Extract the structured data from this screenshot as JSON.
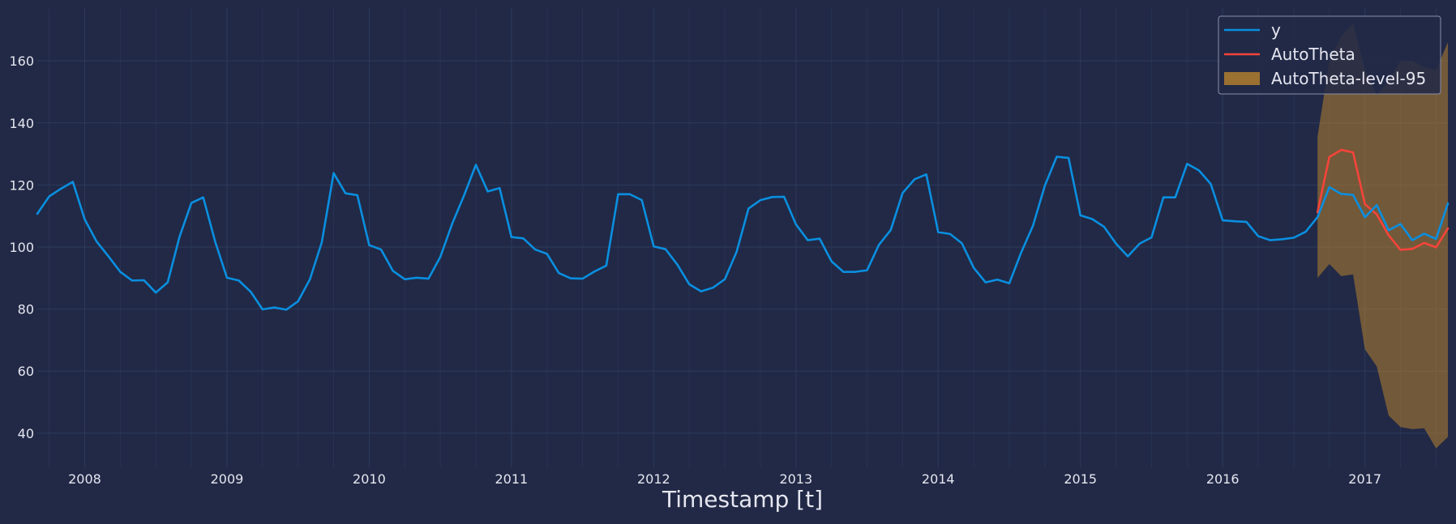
{
  "chart_data": {
    "type": "line",
    "title": "",
    "xlabel": "Timestamp [t]",
    "ylabel": "",
    "x_start": "2007-09",
    "x_step": "month",
    "x_ticks": [
      "2008",
      "2009",
      "2010",
      "2011",
      "2012",
      "2013",
      "2014",
      "2015",
      "2016",
      "2017"
    ],
    "y_ticks": [
      40,
      60,
      80,
      100,
      120,
      140,
      160
    ],
    "ylim": [
      29,
      177
    ],
    "grid": true,
    "legend_position": "top-right",
    "series": [
      {
        "name": "y",
        "kind": "line",
        "color": "#0A8FE0",
        "values": [
          110.7,
          116.3,
          118.8,
          121.0,
          108.9,
          101.8,
          97.0,
          92.0,
          89.2,
          89.3,
          85.3,
          88.6,
          103.3,
          114.2,
          116.0,
          101.8,
          90.1,
          89.2,
          85.6,
          79.9,
          80.5,
          79.8,
          82.5,
          89.6,
          101.5,
          123.8,
          117.3,
          116.7,
          100.6,
          99.2,
          92.3,
          89.6,
          90.1,
          89.8,
          96.8,
          107.5,
          116.6,
          126.5,
          117.9,
          119.0,
          103.2,
          102.8,
          99.2,
          97.8,
          91.6,
          89.9,
          89.8,
          92.1,
          94.0,
          117.0,
          117.0,
          115.1,
          100.2,
          99.3,
          94.3,
          88.0,
          85.7,
          86.9,
          89.6,
          98.5,
          112.4,
          115.1,
          116.1,
          116.2,
          107.3,
          102.2,
          102.7,
          95.4,
          92.0,
          92.0,
          92.5,
          100.7,
          105.5,
          117.4,
          121.8,
          123.4,
          104.8,
          104.2,
          101.2,
          93.3,
          88.6,
          89.5,
          88.3,
          98.2,
          106.9,
          119.8,
          129.1,
          128.7,
          110.2,
          109.0,
          106.5,
          101.1,
          97.0,
          101.1,
          103.1,
          116.0,
          116.0,
          126.8,
          124.7,
          120.3,
          108.6,
          108.3,
          108.1,
          103.5,
          102.2,
          102.5,
          103.0,
          104.9,
          109.6,
          119.3,
          117.1,
          116.8,
          109.6,
          113.5,
          105.4,
          107.4,
          102.2,
          104.3,
          102.6,
          114.0
        ]
      },
      {
        "name": "AutoTheta",
        "kind": "line",
        "color": "#F5443A",
        "start_index": 108,
        "values": [
          111.2,
          129.0,
          131.3,
          130.5,
          113.8,
          110.5,
          103.8,
          99.1,
          99.4,
          101.3,
          99.9,
          106.0
        ]
      },
      {
        "name": "AutoTheta-level-95",
        "kind": "band",
        "color": "#C48A2C",
        "opacity": 0.5,
        "start_index": 108,
        "lower": [
          90.0,
          94.5,
          90.6,
          91.2,
          67.0,
          61.5,
          45.7,
          42.0,
          41.3,
          41.6,
          35.1,
          38.8
        ],
        "upper": [
          135.5,
          160.0,
          168.0,
          172.0,
          157.0,
          149.0,
          153.5,
          160.0,
          160.0,
          158.0,
          157.0,
          166.0
        ]
      }
    ]
  }
}
